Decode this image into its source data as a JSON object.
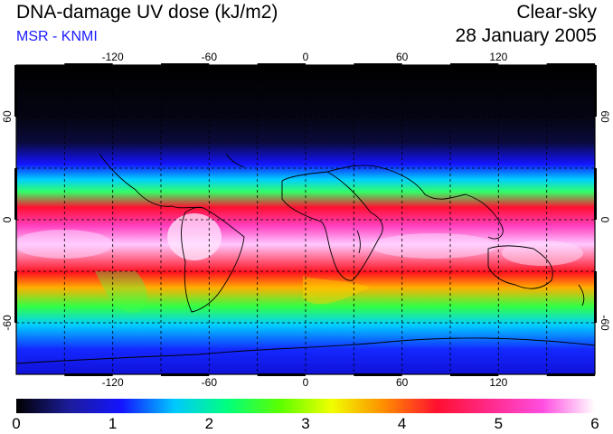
{
  "title": "DNA-damage UV dose (kJ/m2)",
  "subtitle": "MSR - KNMI",
  "sky_condition": "Clear-sky",
  "date": "28 January 2005",
  "longitude_ticks": [
    "-120",
    "-60",
    "0",
    "60",
    "120"
  ],
  "longitude_values": [
    -120,
    -60,
    0,
    60,
    120
  ],
  "latitude_ticks": [
    "60",
    "0",
    "-60"
  ],
  "latitude_values": [
    60,
    0,
    -60
  ],
  "colorbar": {
    "min": 0,
    "max": 6,
    "tick_labels": [
      "0",
      "1",
      "2",
      "3",
      "4",
      "5",
      "6"
    ],
    "stops": [
      "#000000",
      "#1c1c9a",
      "#1414ff",
      "#00c8ff",
      "#00ff7f",
      "#5aff00",
      "#f0ff00",
      "#ff8c00",
      "#ff1030",
      "#ff2a8a",
      "#ff4de0",
      "#ffffff"
    ]
  },
  "map_extent": {
    "lon_min": -180,
    "lon_max": 180,
    "lat_min": -90,
    "lat_max": 90
  }
}
